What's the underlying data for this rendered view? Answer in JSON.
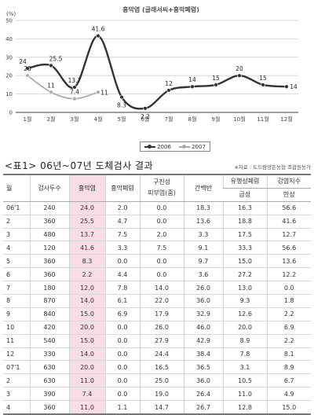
{
  "chart_data": {
    "type": "line",
    "title": "흉막염 (글래서씨+흉막폐렴)",
    "ylabel": "(%)",
    "ylim": [
      0,
      50
    ],
    "yticks": [
      "0",
      "10",
      "20",
      "30",
      "40",
      "50"
    ],
    "categories": [
      "1월",
      "2월",
      "3월",
      "4월",
      "5월",
      "6월",
      "7월",
      "8월",
      "9월",
      "10월",
      "11월",
      "12월"
    ],
    "legend_position": "bottom",
    "series": [
      {
        "name": "2006",
        "color": "#333333",
        "values": [
          24,
          25.5,
          13.7,
          41.6,
          8.3,
          2.2,
          12,
          14,
          15,
          20,
          15,
          14
        ],
        "labels": [
          "24",
          "25.5",
          "13.7",
          "41.6",
          "8.3",
          "2.2",
          "12",
          "14",
          "15",
          "20",
          "15",
          "14"
        ]
      },
      {
        "name": "2007",
        "color": "#aaaaaa",
        "values": [
          20,
          11,
          7.4,
          11,
          null,
          null,
          null,
          null,
          null,
          null,
          null,
          null
        ],
        "labels": [
          "20",
          "11",
          "7.4",
          "11"
        ]
      }
    ]
  },
  "table": {
    "title": "<표1> 06년~07년 도체검사 결과",
    "source": "※자료 : 도드람양돈농협 조합원농가",
    "header_top": [
      "월",
      "검사두수",
      "흉막염",
      "흉막폐렴",
      "구진성\n피부염(줌)",
      "간백반",
      "유행성폐렴",
      "감염지수"
    ],
    "header_sub": [
      "급성",
      "만성"
    ],
    "rows": [
      [
        "06'1",
        "240",
        "24.0",
        "2.0",
        "0.0",
        "18.3",
        "16.3",
        "56.6"
      ],
      [
        "2",
        "360",
        "25.5",
        "4.7",
        "0.0",
        "13.6",
        "18.8",
        "41.6"
      ],
      [
        "3",
        "480",
        "13.7",
        "7.5",
        "2.0",
        "3.3",
        "17.5",
        "12.7"
      ],
      [
        "4",
        "120",
        "41.6",
        "3.3",
        "7.5",
        "9.1",
        "33.3",
        "56.6"
      ],
      [
        "5",
        "360",
        "8.3",
        "0.0",
        "0.0",
        "9.7",
        "15.0",
        "13.6"
      ],
      [
        "6",
        "360",
        "2.2",
        "4.4",
        "0.0",
        "3.6",
        "27.2",
        "12.2"
      ],
      [
        "7",
        "180",
        "12.0",
        "7.8",
        "14.0",
        "26.0",
        "13.0",
        "0.0"
      ],
      [
        "8",
        "870",
        "14.0",
        "6.1",
        "22.0",
        "36.0",
        "9.3",
        "1.8"
      ],
      [
        "9",
        "840",
        "15.0",
        "6.9",
        "17.9",
        "32.9",
        "12.6",
        "2.2"
      ],
      [
        "10",
        "420",
        "20.0",
        "0.0",
        "26.0",
        "46.0",
        "20.0",
        "6.9"
      ],
      [
        "11",
        "540",
        "15.0",
        "0.0",
        "27.9",
        "42.9",
        "8.9",
        "2.2"
      ],
      [
        "12",
        "330",
        "14.0",
        "0.0",
        "24.4",
        "38.4",
        "7.8",
        "8.1"
      ],
      [
        "07'1",
        "630",
        "20.0",
        "0.0",
        "16.5",
        "36.5",
        "3.1",
        "8.9"
      ],
      [
        "2",
        "630",
        "11.0",
        "0.0",
        "25.0",
        "36.0",
        "10.5",
        "6.7"
      ],
      [
        "3",
        "390",
        "7.4",
        "0.0",
        "19.0",
        "26.4",
        "11.0",
        "4.9"
      ],
      [
        "4",
        "360",
        "11.0",
        "1.1",
        "14.7",
        "26.7",
        "12.8",
        "15.0"
      ]
    ]
  }
}
